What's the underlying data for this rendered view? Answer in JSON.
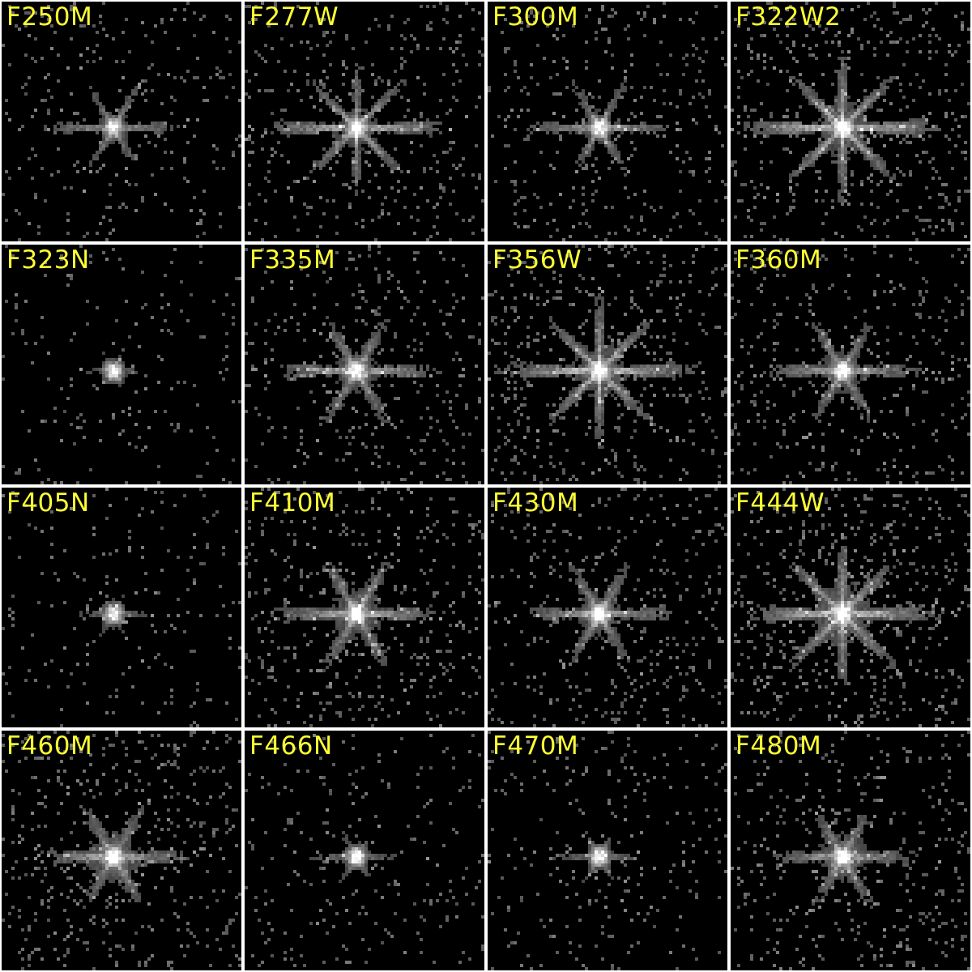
{
  "label_color": "#ffff33",
  "background_color": "#000000",
  "divider_color": "#ffffff",
  "panels": [
    {
      "filter": "F250M",
      "core": 0.95,
      "halo": 0.4,
      "spikes": 0.55,
      "spike_count": 6,
      "noise": 0.35
    },
    {
      "filter": "F277W",
      "core": 1.0,
      "halo": 0.55,
      "spikes": 0.85,
      "spike_count": 8,
      "noise": 0.55
    },
    {
      "filter": "F300M",
      "core": 0.95,
      "halo": 0.45,
      "spikes": 0.6,
      "spike_count": 6,
      "noise": 0.45
    },
    {
      "filter": "F322W2",
      "core": 1.0,
      "halo": 0.7,
      "spikes": 1.0,
      "spike_count": 8,
      "noise": 0.7
    },
    {
      "filter": "F323N",
      "core": 0.95,
      "halo": 0.25,
      "spikes": 0.2,
      "spike_count": 6,
      "noise": 0.15
    },
    {
      "filter": "F335M",
      "core": 1.0,
      "halo": 0.55,
      "spikes": 0.7,
      "spike_count": 6,
      "noise": 0.55
    },
    {
      "filter": "F356W",
      "core": 1.0,
      "halo": 0.7,
      "spikes": 0.95,
      "spike_count": 8,
      "noise": 0.7
    },
    {
      "filter": "F360M",
      "core": 1.0,
      "halo": 0.55,
      "spikes": 0.65,
      "spike_count": 6,
      "noise": 0.55
    },
    {
      "filter": "F405N",
      "core": 0.95,
      "halo": 0.3,
      "spikes": 0.25,
      "spike_count": 6,
      "noise": 0.2
    },
    {
      "filter": "F410M",
      "core": 1.0,
      "halo": 0.65,
      "spikes": 0.7,
      "spike_count": 6,
      "noise": 0.65
    },
    {
      "filter": "F430M",
      "core": 1.0,
      "halo": 0.6,
      "spikes": 0.6,
      "spike_count": 6,
      "noise": 0.6
    },
    {
      "filter": "F444W",
      "core": 1.0,
      "halo": 0.8,
      "spikes": 0.95,
      "spike_count": 8,
      "noise": 0.8
    },
    {
      "filter": "F460M",
      "core": 1.0,
      "halo": 0.7,
      "spikes": 0.55,
      "spike_count": 6,
      "noise": 0.65
    },
    {
      "filter": "F466N",
      "core": 0.95,
      "halo": 0.35,
      "spikes": 0.3,
      "spike_count": 6,
      "noise": 0.3
    },
    {
      "filter": "F470M",
      "core": 0.95,
      "halo": 0.35,
      "spikes": 0.3,
      "spike_count": 6,
      "noise": 0.3
    },
    {
      "filter": "F480M",
      "core": 1.0,
      "halo": 0.65,
      "spikes": 0.55,
      "spike_count": 6,
      "noise": 0.6
    }
  ]
}
